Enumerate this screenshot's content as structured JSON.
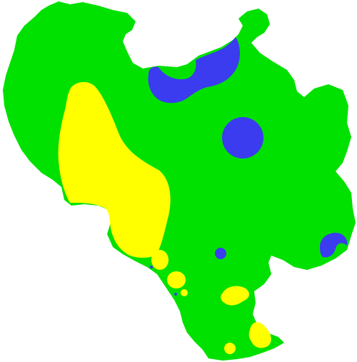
{
  "map": {
    "colors": {
      "background": "#ffffff",
      "region_base": "#00e100",
      "zone_high": "#ffff00",
      "zone_low": "#3b3bf0"
    },
    "zone_counts": {
      "yellow_zones": 7,
      "blue_zones": 6
    }
  }
}
